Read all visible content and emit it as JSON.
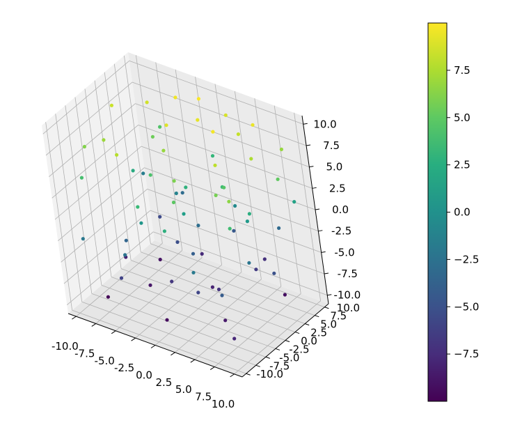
{
  "chart_data": [
    {
      "type": "scatter",
      "projection": "3d",
      "title": "",
      "xlabel": "",
      "ylabel": "",
      "zlabel": "",
      "xlim": [
        -11,
        11
      ],
      "ylim": [
        -11,
        11
      ],
      "zlim": [
        -11,
        11
      ],
      "x_ticks": [
        "-10.0",
        "-7.5",
        "-5.0",
        "-2.5",
        "0.0",
        "2.5",
        "5.0",
        "7.5",
        "10.0"
      ],
      "y_ticks": [
        "-10.0",
        "-7.5",
        "-5.0",
        "-2.5",
        "0.0",
        "2.5",
        "5.0",
        "7.5",
        "10.0"
      ],
      "z_ticks": [
        "-10.0",
        "-7.5",
        "-5.0",
        "-2.5",
        "0.0",
        "2.5",
        "5.0",
        "7.5",
        "10.0"
      ],
      "grid": true,
      "color_by": "z",
      "colormap": "viridis",
      "marker_size": 4,
      "points_note": "approximately 200 uniformly scattered points, x, y, z in [-10, 10], colored by z",
      "points": [
        [
          -9.5,
          3.0,
          8.4
        ],
        [
          -8.0,
          -2.5,
          7.0
        ],
        [
          -6.5,
          6.0,
          8.6
        ],
        [
          -9.0,
          -7.0,
          4.0
        ],
        [
          -7.0,
          1.5,
          2.2
        ],
        [
          -5.5,
          4.5,
          5.5
        ],
        [
          -3.5,
          7.5,
          9.6
        ],
        [
          -4.5,
          -6.0,
          7.8
        ],
        [
          -2.0,
          2.0,
          9.0
        ],
        [
          -1.0,
          8.5,
          9.9
        ],
        [
          0.5,
          5.0,
          9.3
        ],
        [
          2.0,
          9.0,
          8.8
        ],
        [
          3.5,
          3.0,
          9.7
        ],
        [
          4.5,
          7.0,
          8.2
        ],
        [
          6.0,
          8.0,
          9.4
        ],
        [
          5.5,
          -1.0,
          8.0
        ],
        [
          7.5,
          4.0,
          7.5
        ],
        [
          8.5,
          9.5,
          6.8
        ],
        [
          9.5,
          6.0,
          5.0
        ],
        [
          1.5,
          -4.0,
          6.0
        ],
        [
          -3.0,
          -1.5,
          4.2
        ],
        [
          -1.5,
          -8.0,
          3.5
        ],
        [
          0.0,
          1.0,
          2.8
        ],
        [
          2.5,
          -6.5,
          4.8
        ],
        [
          4.0,
          2.5,
          3.6
        ],
        [
          6.5,
          -3.5,
          5.8
        ],
        [
          8.0,
          1.0,
          2.4
        ],
        [
          9.0,
          -5.0,
          6.5
        ],
        [
          -8.5,
          -9.5,
          -2.0
        ],
        [
          -9.5,
          8.0,
          -1.5
        ],
        [
          -6.0,
          -4.0,
          -3.5
        ],
        [
          -4.0,
          5.5,
          -1.0
        ],
        [
          -2.5,
          -6.0,
          0.5
        ],
        [
          -0.5,
          3.5,
          -2.8
        ],
        [
          1.0,
          -2.0,
          1.2
        ],
        [
          3.0,
          6.5,
          -0.5
        ],
        [
          5.0,
          -8.5,
          -1.8
        ],
        [
          7.0,
          2.0,
          0.8
        ],
        [
          8.5,
          -1.5,
          -2.2
        ],
        [
          9.8,
          8.5,
          1.5
        ],
        [
          -7.5,
          7.0,
          -5.5
        ],
        [
          -5.0,
          -8.0,
          -6.0
        ],
        [
          -3.0,
          2.5,
          -5.2
        ],
        [
          -1.0,
          -3.5,
          -6.8
        ],
        [
          1.5,
          8.0,
          -4.5
        ],
        [
          3.5,
          -5.5,
          -5.8
        ],
        [
          5.5,
          5.0,
          -6.5
        ],
        [
          7.5,
          -7.0,
          -4.2
        ],
        [
          9.0,
          3.0,
          -5.0
        ],
        [
          -9.0,
          0.5,
          -8.2
        ],
        [
          -6.5,
          4.0,
          -9.0
        ],
        [
          -4.5,
          -2.5,
          -8.8
        ],
        [
          -2.0,
          6.0,
          -7.6
        ],
        [
          0.0,
          -7.5,
          -9.4
        ],
        [
          2.0,
          0.5,
          -8.0
        ],
        [
          4.5,
          9.0,
          -7.2
        ],
        [
          6.0,
          -4.5,
          -8.6
        ],
        [
          8.0,
          6.5,
          -9.2
        ],
        [
          9.5,
          -9.0,
          -7.8
        ],
        [
          -8.0,
          -6.5,
          -9.8
        ],
        [
          -5.5,
          9.5,
          -3.0
        ],
        [
          -3.5,
          -9.0,
          -2.4
        ],
        [
          -0.5,
          9.0,
          3.2
        ],
        [
          2.5,
          -9.5,
          2.6
        ],
        [
          6.5,
          9.8,
          -3.2
        ],
        [
          9.2,
          -6.0,
          3.8
        ],
        [
          -9.8,
          -4.0,
          6.2
        ],
        [
          -7.0,
          9.0,
          4.4
        ],
        [
          0.8,
          -0.8,
          -4.0
        ],
        [
          -1.8,
          0.2,
          6.8
        ],
        [
          3.8,
          -1.2,
          -7.0
        ],
        [
          5.2,
          0.8,
          4.6
        ]
      ]
    },
    {
      "type": "colorbar",
      "colormap": "viridis",
      "range": [
        -10,
        10
      ],
      "tick_values": [
        -7.5,
        -5.0,
        -2.5,
        0.0,
        2.5,
        5.0,
        7.5
      ],
      "tick_labels": [
        "−7.5",
        "−5.0",
        "−2.5",
        "0.0",
        "2.5",
        "5.0",
        "7.5"
      ]
    }
  ],
  "colors": {
    "pane_left": "#f2f2f2",
    "pane_right": "#ebebeb",
    "pane_floor": "#e6e6e6",
    "grid": "#b0b0b0"
  }
}
